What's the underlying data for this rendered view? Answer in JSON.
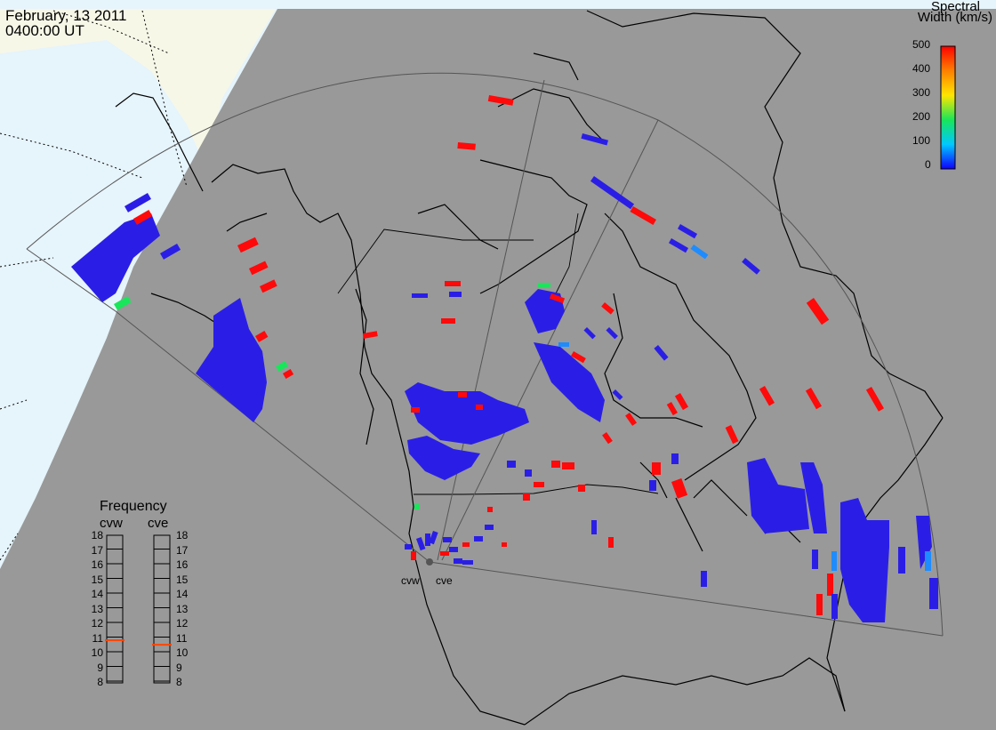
{
  "header": {
    "date": "February, 13 2011",
    "time": "0400:00 UT"
  },
  "spectral_width": {
    "title_line1": "Spectral",
    "title_line2": "Width (km/s)",
    "ticks": [
      "500",
      "400",
      "300",
      "200",
      "100",
      "0"
    ],
    "min": 0,
    "max": 500
  },
  "frequency": {
    "title": "Frequency",
    "radars": [
      {
        "name": "cvw",
        "value_mhz": 10.9
      },
      {
        "name": "cve",
        "value_mhz": 10.6
      }
    ],
    "ticks": [
      "18",
      "17",
      "16",
      "15",
      "14",
      "13",
      "12",
      "11",
      "10",
      "9",
      "8"
    ]
  },
  "radar_sites": [
    {
      "name": "cvw"
    },
    {
      "name": "cve"
    }
  ],
  "colors": {
    "night": "#999999",
    "ocean_day": "#e6f4fb",
    "land_day": "#f7f7e8",
    "low_width": "#2a1ee6",
    "high_width": "#ff0a0a",
    "mid_width": "#19e65a",
    "marker": "#ff4500"
  }
}
